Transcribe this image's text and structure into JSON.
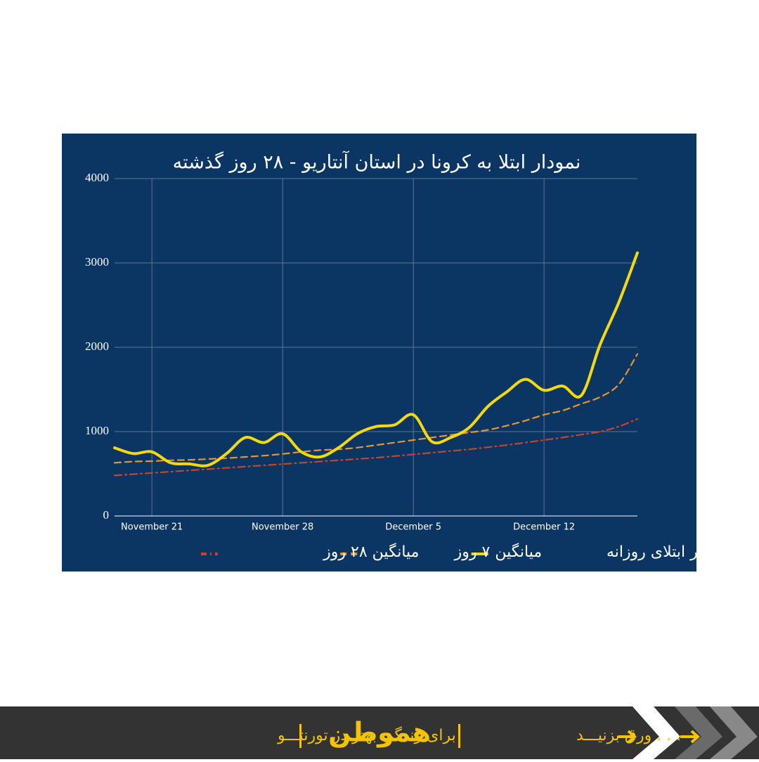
{
  "chart_data": {
    "type": "line",
    "title": "نمودار ابتلا به کرونا در استان آنتاریو - ۲۸ روز گذشته",
    "x": [
      0,
      1,
      2,
      3,
      4,
      5,
      6,
      7,
      8,
      9,
      10,
      11,
      12,
      13,
      14,
      15,
      16,
      17,
      18,
      19,
      20,
      21,
      22,
      23,
      24,
      25,
      26,
      27,
      28
    ],
    "xlim": [
      0,
      28
    ],
    "xticks": [
      {
        "value": 2,
        "label": "November 21"
      },
      {
        "value": 9,
        "label": "November 28"
      },
      {
        "value": 16,
        "label": "December 5"
      },
      {
        "value": 23,
        "label": "December 12"
      }
    ],
    "ylim": [
      0,
      4000
    ],
    "yticks": [
      0,
      1000,
      2000,
      3000,
      4000
    ],
    "grid": true,
    "series": [
      {
        "name": "آمار ابتلای روزانه",
        "color": "#f5d90a",
        "style": "solid",
        "values": [
          808,
          740,
          760,
          630,
          617,
          600,
          740,
          930,
          870,
          975,
          760,
          700,
          810,
          975,
          1060,
          1080,
          1200,
          880,
          930,
          1050,
          1300,
          1470,
          1620,
          1490,
          1540,
          1430,
          2030,
          2530,
          3120
        ]
      },
      {
        "name": "میانگین ۷ روز",
        "color": "#e8952a",
        "style": "dashed",
        "values": [
          630,
          645,
          650,
          660,
          665,
          675,
          685,
          700,
          715,
          735,
          760,
          780,
          790,
          810,
          840,
          870,
          900,
          930,
          960,
          990,
          1020,
          1070,
          1130,
          1200,
          1250,
          1330,
          1410,
          1560,
          1920
        ]
      },
      {
        "name": "میانگین ۲۸ روز",
        "color": "#c8432d",
        "style": "dashdot",
        "values": [
          480,
          495,
          510,
          525,
          540,
          555,
          570,
          585,
          600,
          615,
          630,
          645,
          660,
          675,
          690,
          710,
          730,
          750,
          770,
          790,
          815,
          840,
          870,
          900,
          930,
          965,
          1000,
          1060,
          1150
        ]
      }
    ]
  },
  "footer": {
    "tagline": "برای زندگی بهتر در تورنتـــو",
    "logo": "هموطن",
    "swipe": ". . . ورق بزنیـــد"
  }
}
